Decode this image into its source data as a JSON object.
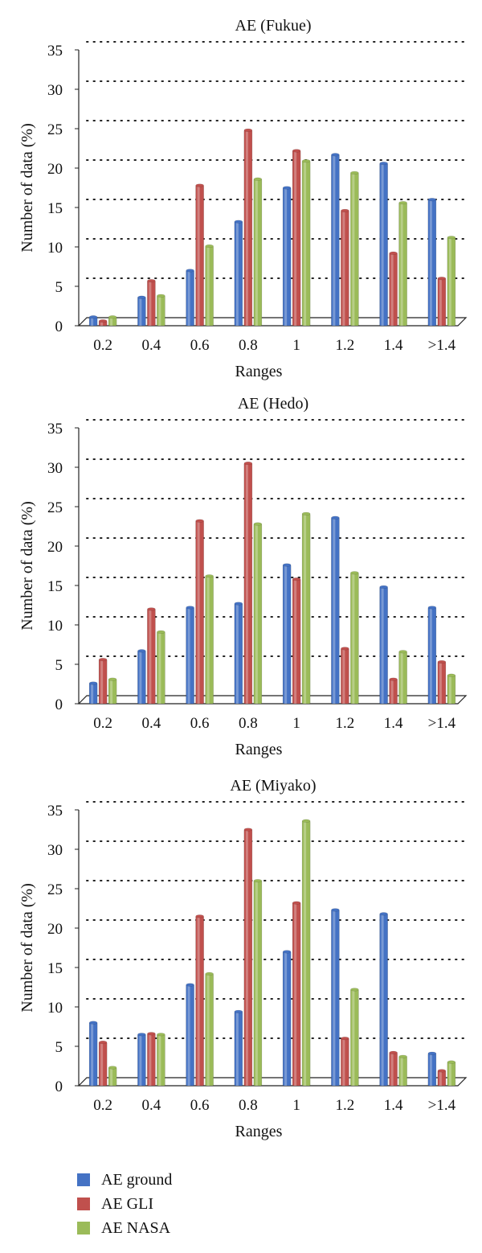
{
  "colors": {
    "ground": "#4472c4",
    "gli": "#c0504d",
    "nasa": "#9bbb59"
  },
  "legend": [
    {
      "label": "AE ground",
      "color": "#4472c4"
    },
    {
      "label": "AE GLI",
      "color": "#c0504d"
    },
    {
      "label": "AE NASA",
      "color": "#9bbb59"
    }
  ],
  "chart_data": [
    {
      "type": "bar",
      "title": "AE (Fukue)",
      "xlabel": "Ranges",
      "ylabel": "Number of data (%)",
      "ylim": [
        0,
        35
      ],
      "yticks": [
        0,
        5,
        10,
        15,
        20,
        25,
        30,
        35
      ],
      "grid": true,
      "categories": [
        "0.2",
        "0.4",
        "0.6",
        "0.8",
        "1",
        "1.2",
        "1.4",
        ">1.4"
      ],
      "series": [
        {
          "name": "AE ground",
          "values": [
            1.1,
            3.6,
            7.0,
            13.2,
            17.5,
            21.7,
            20.6,
            16.0
          ]
        },
        {
          "name": "AE GLI",
          "values": [
            0.6,
            5.7,
            17.8,
            24.8,
            22.2,
            14.6,
            9.2,
            6.0
          ]
        },
        {
          "name": "AE NASA",
          "values": [
            1.1,
            3.8,
            10.1,
            18.6,
            20.9,
            19.4,
            15.6,
            11.2
          ]
        }
      ]
    },
    {
      "type": "bar",
      "title": "AE (Hedo)",
      "xlabel": "Ranges",
      "ylabel": "Number of data (%)",
      "ylim": [
        0,
        35
      ],
      "yticks": [
        0,
        5,
        10,
        15,
        20,
        25,
        30,
        35
      ],
      "grid": true,
      "categories": [
        "0.2",
        "0.4",
        "0.6",
        "0.8",
        "1",
        "1.2",
        "1.4",
        ">1.4"
      ],
      "series": [
        {
          "name": "AE ground",
          "values": [
            2.6,
            6.7,
            12.2,
            12.7,
            17.6,
            23.6,
            14.8,
            12.2
          ]
        },
        {
          "name": "AE GLI",
          "values": [
            5.6,
            12.0,
            23.2,
            30.5,
            15.8,
            7.0,
            3.1,
            5.3
          ]
        },
        {
          "name": "AE NASA",
          "values": [
            3.1,
            9.1,
            16.2,
            22.8,
            24.1,
            16.6,
            6.6,
            3.6
          ]
        }
      ]
    },
    {
      "type": "bar",
      "title": "AE (Miyako)",
      "xlabel": "Ranges",
      "ylabel": "Number of data (%)",
      "ylim": [
        0,
        35
      ],
      "yticks": [
        0,
        5,
        10,
        15,
        20,
        25,
        30,
        35
      ],
      "grid": true,
      "categories": [
        "0.2",
        "0.4",
        "0.6",
        "0.8",
        "1",
        "1.2",
        "1.4",
        ">1.4"
      ],
      "series": [
        {
          "name": "AE ground",
          "values": [
            8.0,
            6.5,
            12.8,
            9.4,
            17.0,
            22.3,
            21.8,
            4.1
          ]
        },
        {
          "name": "AE GLI",
          "values": [
            5.5,
            6.6,
            21.5,
            32.5,
            23.2,
            6.0,
            4.2,
            1.9
          ]
        },
        {
          "name": "AE NASA",
          "values": [
            2.3,
            6.5,
            14.2,
            26.0,
            33.6,
            12.2,
            3.7,
            3.0
          ]
        }
      ]
    }
  ]
}
